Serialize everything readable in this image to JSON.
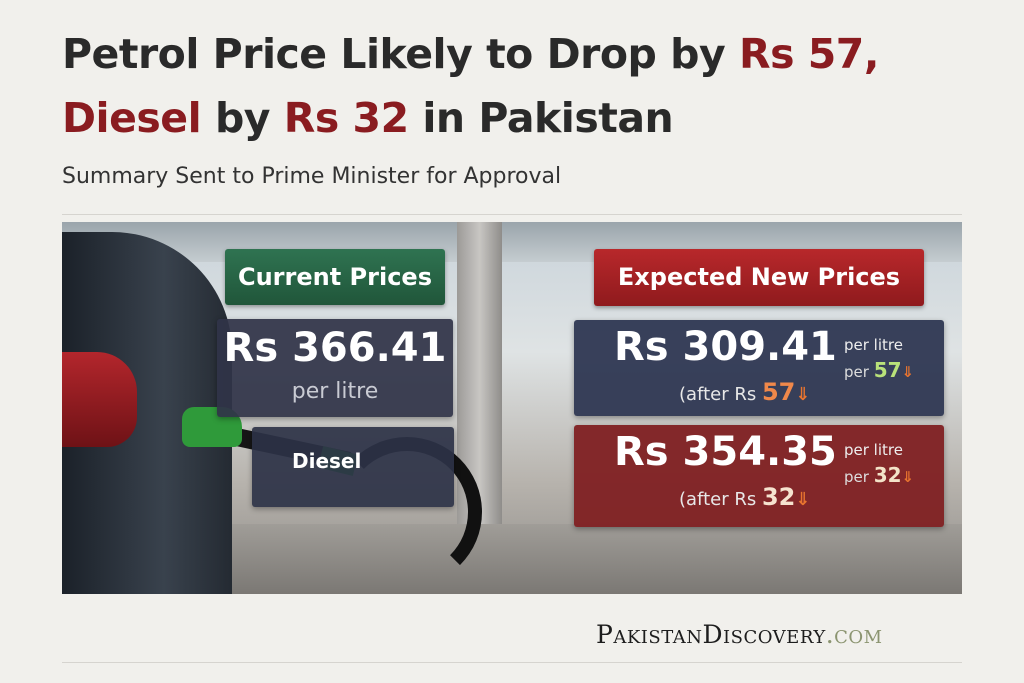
{
  "headline": {
    "line1_a": "Petrol Price Likely to Drop by ",
    "line1_b": "Rs 57,",
    "line2_a": "Diesel",
    "line2_b": " by ",
    "line2_c": "Rs 32",
    "line2_d": " in Pakistan"
  },
  "subtitle": "Summary Sent to Prime Minister for Approval",
  "current": {
    "header": "Current Prices",
    "petrol_price": "Rs 366.41",
    "unit": "per litre",
    "diesel_label": "Diesel"
  },
  "expected": {
    "header": "Expected New Prices",
    "petrol": {
      "price": "Rs 309.41",
      "unit": "per litre",
      "cut_prefix": "per",
      "cut": "57",
      "after_prefix": "(after Rs ",
      "after_value": "57"
    },
    "diesel": {
      "price": "Rs 354.35",
      "unit": "per litre",
      "cut_prefix": "per",
      "cut": "32",
      "after_prefix": "(after Rs ",
      "after_value": "32"
    },
    "arrow": "⇓"
  },
  "brand": {
    "name": "PakistanDiscovery",
    "domain": ".com"
  },
  "colors": {
    "accent_red": "#8a1c20",
    "current_green": "#2f7351",
    "expected_red": "#b8282b",
    "petrol_panel": "#2e3752",
    "diesel_panel": "#802022"
  }
}
